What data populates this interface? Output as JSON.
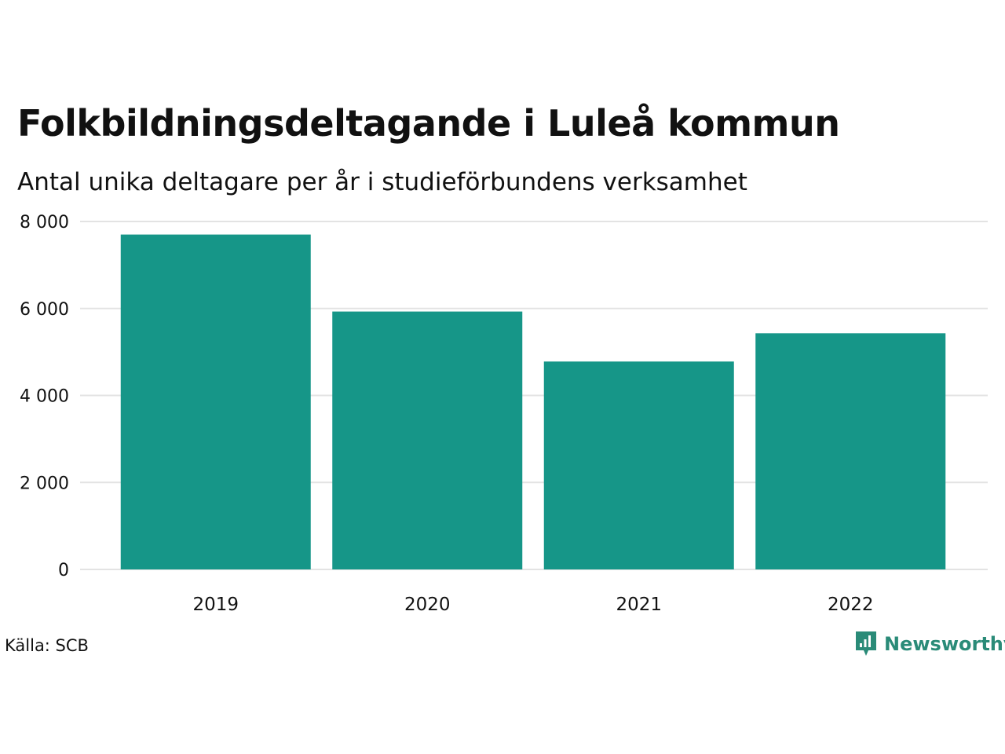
{
  "title": "Folkbildningsdeltagande i Luleå kommun",
  "subtitle": "Antal unika deltagare per år i studieförbundens verksamhet",
  "source": "Källa: SCB",
  "brand": {
    "name": "Newsworthy",
    "color": "#2a8b78",
    "icon": "newsworthy-logo-icon"
  },
  "colors": {
    "bar": "#169688",
    "grid": "#e3e3e3",
    "text": "#111111"
  },
  "chart_data": {
    "type": "bar",
    "categories": [
      "2019",
      "2020",
      "2021",
      "2022"
    ],
    "values": [
      7700,
      5930,
      4780,
      5430
    ],
    "ylim": [
      0,
      8000
    ],
    "yticks": [
      0,
      2000,
      4000,
      6000,
      8000
    ],
    "ytick_labels": [
      "0",
      "2 000",
      "4 000",
      "6 000",
      "8 000"
    ],
    "grid": true,
    "legend": "none",
    "xlabel": "",
    "ylabel": ""
  }
}
